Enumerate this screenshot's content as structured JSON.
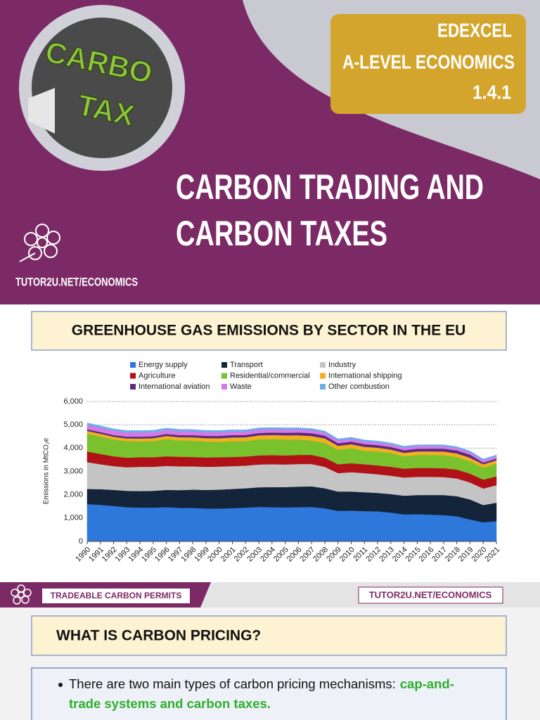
{
  "cover": {
    "badge": [
      "EDEXCEL",
      "A-LEVEL ECONOMICS",
      "1.4.1"
    ],
    "logo_text": [
      "CARBO",
      "TAX"
    ],
    "title": [
      "CARBON TRADING AND",
      "CARBON TAXES"
    ],
    "site": "TUTOR2U.NET/ECONOMICS"
  },
  "chart_data": {
    "type": "stacked-area",
    "title": "GREENHOUSE GAS EMISSIONS BY SECTOR IN THE EU",
    "y_label": "Emissions in MtCO₂e",
    "x": [
      1990,
      1991,
      1992,
      1993,
      1994,
      1995,
      1996,
      1997,
      1998,
      1999,
      2000,
      2001,
      2002,
      2003,
      2004,
      2005,
      2006,
      2007,
      2008,
      2009,
      2010,
      2011,
      2012,
      2013,
      2014,
      2015,
      2016,
      2017,
      2018,
      2019,
      2020,
      2021
    ],
    "xlim": [
      1990,
      2021
    ],
    "ylim": [
      0,
      6000
    ],
    "yticks": [
      0,
      {
        "value": 1000,
        "label": "1,000"
      },
      {
        "value": 2000,
        "label": "2,000"
      },
      {
        "value": 3000,
        "label": "3,000"
      },
      {
        "value": 4000,
        "label": "4,000"
      },
      {
        "value": 5000,
        "label": "5,000"
      },
      {
        "value": 6000,
        "label": "6,000"
      }
    ],
    "grid": true,
    "legend": "top",
    "series": [
      {
        "name": "Energy supply",
        "color": "#2e78dc",
        "values": [
          1600,
          1570,
          1520,
          1470,
          1450,
          1450,
          1470,
          1440,
          1440,
          1410,
          1410,
          1430,
          1450,
          1480,
          1470,
          1460,
          1470,
          1480,
          1420,
          1310,
          1320,
          1300,
          1290,
          1240,
          1160,
          1170,
          1150,
          1130,
          1080,
          940,
          820,
          870
        ]
      },
      {
        "name": "Transport",
        "color": "#14243a",
        "values": [
          650,
          670,
          690,
          700,
          710,
          720,
          740,
          760,
          780,
          800,
          810,
          820,
          830,
          840,
          860,
          870,
          880,
          880,
          860,
          830,
          820,
          810,
          790,
          790,
          800,
          820,
          840,
          860,
          860,
          860,
          740,
          790
        ]
      },
      {
        "name": "Industry",
        "color": "#c4c4c4",
        "values": [
          1150,
          1070,
          1020,
          1010,
          1040,
          1030,
          1030,
          1020,
          1000,
          990,
          990,
          980,
          970,
          980,
          980,
          970,
          970,
          960,
          920,
          790,
          830,
          820,
          800,
          790,
          780,
          780,
          780,
          770,
          760,
          730,
          710,
          750
        ]
      },
      {
        "name": "Agriculture",
        "color": "#b01218",
        "values": [
          460,
          440,
          420,
          410,
          410,
          410,
          410,
          410,
          400,
          400,
          400,
          390,
          390,
          390,
          390,
          390,
          390,
          390,
          390,
          380,
          380,
          380,
          380,
          380,
          380,
          380,
          380,
          380,
          380,
          380,
          380,
          380
        ]
      },
      {
        "name": "Residential/commercial",
        "color": "#79c22e",
        "values": [
          760,
          750,
          720,
          710,
          680,
          690,
          740,
          700,
          700,
          680,
          660,
          680,
          660,
          690,
          690,
          680,
          660,
          620,
          640,
          620,
          650,
          580,
          600,
          590,
          530,
          560,
          560,
          560,
          540,
          530,
          520,
          550
        ]
      },
      {
        "name": "International shipping",
        "color": "#f2b01e",
        "values": [
          120,
          120,
          120,
          120,
          125,
          130,
          135,
          140,
          145,
          150,
          155,
          160,
          165,
          170,
          175,
          180,
          185,
          190,
          190,
          170,
          170,
          170,
          160,
          150,
          150,
          150,
          150,
          155,
          155,
          150,
          140,
          140
        ]
      },
      {
        "name": "International aviation",
        "color": "#5b2a80",
        "values": [
          70,
          70,
          72,
          75,
          78,
          80,
          84,
          88,
          92,
          96,
          100,
          100,
          98,
          100,
          105,
          110,
          115,
          120,
          120,
          110,
          110,
          112,
          110,
          110,
          112,
          115,
          120,
          125,
          128,
          130,
          70,
          75
        ]
      },
      {
        "name": "Waste",
        "color": "#d47ae6",
        "values": [
          190,
          188,
          186,
          184,
          182,
          180,
          176,
          172,
          168,
          164,
          160,
          156,
          152,
          148,
          144,
          140,
          136,
          132,
          128,
          124,
          120,
          118,
          116,
          114,
          112,
          110,
          108,
          106,
          104,
          102,
          100,
          98
        ]
      },
      {
        "name": "Other combustion",
        "color": "#6aaeea",
        "values": [
          80,
          80,
          78,
          78,
          76,
          76,
          76,
          74,
          74,
          72,
          72,
          72,
          70,
          70,
          70,
          70,
          68,
          68,
          66,
          64,
          64,
          62,
          60,
          60,
          60,
          58,
          58,
          58,
          56,
          56,
          54,
          54
        ]
      }
    ]
  },
  "footer": {
    "topic": "TRADEABLE CARBON PERMITS",
    "site": "TUTOR2U.NET/ECONOMICS"
  },
  "section": {
    "heading": "WHAT IS CARBON PRICING?",
    "bullet": {
      "text": "There are two main types of carbon pricing mechanisms:",
      "highlight": [
        "cap-and-",
        "trade systems and carbon taxes."
      ]
    }
  }
}
